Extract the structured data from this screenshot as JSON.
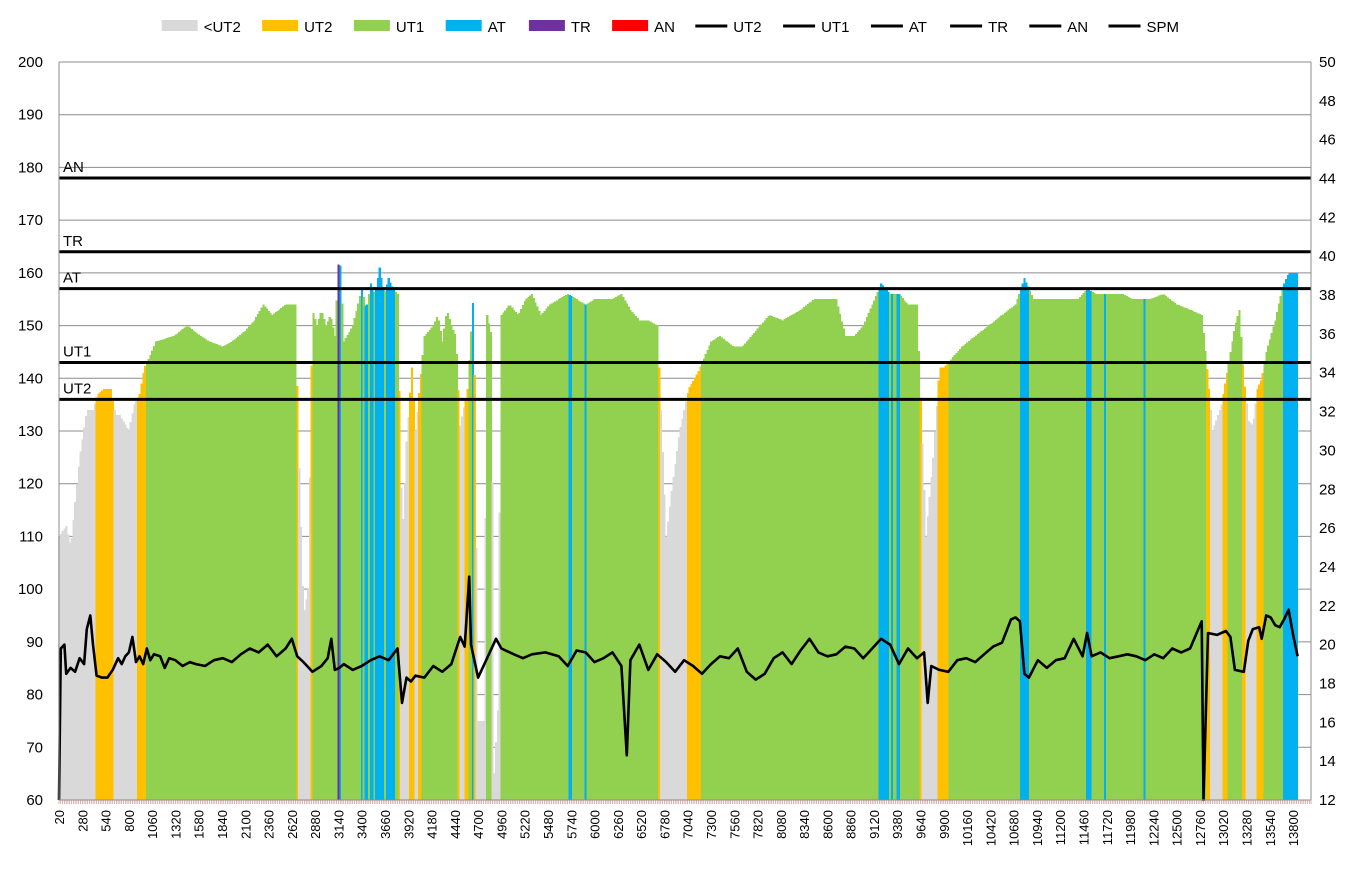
{
  "chart_data": {
    "type": "bar",
    "legend": {
      "placement": "top",
      "entries": [
        {
          "label": "<UT2",
          "kind": "swatch",
          "color": "#d9d9d9"
        },
        {
          "label": "UT2",
          "kind": "swatch",
          "color": "#ffc000"
        },
        {
          "label": "UT1",
          "kind": "swatch",
          "color": "#92d050"
        },
        {
          "label": "AT",
          "kind": "swatch",
          "color": "#00b0f0"
        },
        {
          "label": "TR",
          "kind": "swatch",
          "color": "#7030a0"
        },
        {
          "label": "AN",
          "kind": "swatch",
          "color": "#ff0000"
        },
        {
          "label": "UT2",
          "kind": "line",
          "color": "#000000"
        },
        {
          "label": "UT1",
          "kind": "line",
          "color": "#000000"
        },
        {
          "label": "AT",
          "kind": "line",
          "color": "#000000"
        },
        {
          "label": "TR",
          "kind": "line",
          "color": "#000000"
        },
        {
          "label": "AN",
          "kind": "line",
          "color": "#000000"
        },
        {
          "label": "SPM",
          "kind": "line",
          "color": "#000000"
        }
      ]
    },
    "y_left": {
      "min": 60,
      "max": 200,
      "step": 10
    },
    "y_right": {
      "min": 12,
      "max": 50,
      "step": 2
    },
    "x": {
      "min": 20,
      "max": 14000
    },
    "x_ticks": [
      "20",
      "280",
      "540",
      "800",
      "1060",
      "1320",
      "1580",
      "1840",
      "2100",
      "2360",
      "2620",
      "2880",
      "3140",
      "3400",
      "3660",
      "3920",
      "4180",
      "4440",
      "4700",
      "4960",
      "5220",
      "5480",
      "5740",
      "6000",
      "6260",
      "6520",
      "6780",
      "7040",
      "7300",
      "7560",
      "7820",
      "8080",
      "8340",
      "8600",
      "8860",
      "9120",
      "9380",
      "9640",
      "9900",
      "10160",
      "10420",
      "10680",
      "10940",
      "11200",
      "11460",
      "11720",
      "11980",
      "12240",
      "12500",
      "12760",
      "13020",
      "13280",
      "13540",
      "13800"
    ],
    "grid": "horizontal",
    "zone_lines": [
      {
        "label": "AN",
        "value": 178
      },
      {
        "label": "TR",
        "value": 164
      },
      {
        "label": "AT",
        "value": 157
      },
      {
        "label": "UT1",
        "value": 143
      },
      {
        "label": "UT2",
        "value": 136
      }
    ],
    "heart_rate_points": [
      [
        20,
        110
      ],
      [
        100,
        112
      ],
      [
        150,
        108
      ],
      [
        250,
        125
      ],
      [
        330,
        134
      ],
      [
        400,
        134
      ],
      [
        450,
        137
      ],
      [
        520,
        138
      ],
      [
        600,
        138
      ],
      [
        650,
        133
      ],
      [
        700,
        133
      ],
      [
        800,
        130
      ],
      [
        860,
        135
      ],
      [
        920,
        137
      ],
      [
        970,
        142
      ],
      [
        1030,
        144
      ],
      [
        1100,
        147
      ],
      [
        1300,
        148
      ],
      [
        1450,
        150
      ],
      [
        1600,
        148
      ],
      [
        1700,
        147
      ],
      [
        1850,
        146
      ],
      [
        1950,
        147
      ],
      [
        2100,
        149
      ],
      [
        2200,
        151
      ],
      [
        2300,
        154
      ],
      [
        2400,
        152
      ],
      [
        2550,
        154
      ],
      [
        2660,
        154
      ],
      [
        2700,
        123
      ],
      [
        2750,
        95
      ],
      [
        2800,
        100
      ],
      [
        2850,
        153
      ],
      [
        2900,
        150
      ],
      [
        2950,
        153
      ],
      [
        3000,
        150
      ],
      [
        3050,
        152
      ],
      [
        3100,
        148
      ],
      [
        3150,
        165
      ],
      [
        3200,
        147
      ],
      [
        3300,
        150
      ],
      [
        3400,
        157
      ],
      [
        3450,
        153
      ],
      [
        3500,
        158
      ],
      [
        3550,
        156
      ],
      [
        3600,
        161
      ],
      [
        3650,
        156
      ],
      [
        3700,
        159
      ],
      [
        3750,
        157
      ],
      [
        3800,
        156
      ],
      [
        3850,
        110
      ],
      [
        3880,
        120
      ],
      [
        3900,
        128
      ],
      [
        3930,
        135
      ],
      [
        3960,
        142
      ],
      [
        4000,
        130
      ],
      [
        4100,
        148
      ],
      [
        4200,
        150
      ],
      [
        4250,
        152
      ],
      [
        4300,
        147
      ],
      [
        4350,
        153
      ],
      [
        4400,
        150
      ],
      [
        4450,
        148
      ],
      [
        4500,
        131
      ],
      [
        4580,
        138
      ],
      [
        4650,
        157
      ],
      [
        4700,
        75
      ],
      [
        4760,
        75
      ],
      [
        4800,
        152
      ],
      [
        4850,
        148
      ],
      [
        4880,
        65
      ],
      [
        4920,
        77
      ],
      [
        4960,
        152
      ],
      [
        5050,
        154
      ],
      [
        5150,
        152
      ],
      [
        5230,
        155
      ],
      [
        5300,
        156
      ],
      [
        5400,
        152
      ],
      [
        5500,
        154
      ],
      [
        5600,
        155
      ],
      [
        5700,
        156
      ],
      [
        5800,
        155
      ],
      [
        5900,
        154
      ],
      [
        6000,
        155
      ],
      [
        6100,
        155
      ],
      [
        6200,
        155
      ],
      [
        6300,
        156
      ],
      [
        6400,
        153
      ],
      [
        6500,
        151
      ],
      [
        6600,
        151
      ],
      [
        6700,
        150
      ],
      [
        6800,
        110
      ],
      [
        6870,
        120
      ],
      [
        6950,
        130
      ],
      [
        7050,
        138
      ],
      [
        7150,
        141
      ],
      [
        7200,
        143
      ],
      [
        7300,
        147
      ],
      [
        7400,
        148
      ],
      [
        7550,
        146
      ],
      [
        7650,
        146
      ],
      [
        7800,
        149
      ],
      [
        7950,
        152
      ],
      [
        8100,
        151
      ],
      [
        8200,
        152
      ],
      [
        8300,
        153
      ],
      [
        8450,
        155
      ],
      [
        8600,
        155
      ],
      [
        8700,
        155
      ],
      [
        8800,
        148
      ],
      [
        8900,
        148
      ],
      [
        9000,
        150
      ],
      [
        9100,
        154
      ],
      [
        9200,
        158
      ],
      [
        9300,
        156
      ],
      [
        9400,
        156
      ],
      [
        9500,
        154
      ],
      [
        9600,
        154
      ],
      [
        9700,
        110
      ],
      [
        9780,
        125
      ],
      [
        9850,
        142
      ],
      [
        9900,
        142
      ],
      [
        10000,
        144
      ],
      [
        10100,
        146
      ],
      [
        10250,
        148
      ],
      [
        10400,
        150
      ],
      [
        10550,
        152
      ],
      [
        10700,
        154
      ],
      [
        10800,
        159
      ],
      [
        10900,
        155
      ],
      [
        11000,
        155
      ],
      [
        11100,
        155
      ],
      [
        11200,
        155
      ],
      [
        11300,
        155
      ],
      [
        11400,
        155
      ],
      [
        11500,
        157
      ],
      [
        11600,
        156
      ],
      [
        11700,
        156
      ],
      [
        11800,
        156
      ],
      [
        11900,
        156
      ],
      [
        12000,
        155
      ],
      [
        12100,
        155
      ],
      [
        12200,
        155
      ],
      [
        12350,
        156
      ],
      [
        12500,
        154
      ],
      [
        12650,
        153
      ],
      [
        12780,
        152
      ],
      [
        12850,
        140
      ],
      [
        12900,
        130
      ],
      [
        13000,
        135
      ],
      [
        13050,
        140
      ],
      [
        13100,
        145
      ],
      [
        13150,
        150
      ],
      [
        13200,
        153
      ],
      [
        13250,
        140
      ],
      [
        13300,
        132
      ],
      [
        13350,
        131
      ],
      [
        13400,
        138
      ],
      [
        13450,
        140
      ],
      [
        13500,
        145
      ],
      [
        13550,
        148
      ],
      [
        13600,
        151
      ],
      [
        13650,
        155
      ],
      [
        13700,
        158
      ],
      [
        13750,
        160
      ],
      [
        13800,
        160
      ]
    ],
    "zone_override_points": [
      [
        3135,
        "TR"
      ],
      [
        3450,
        "AT"
      ],
      [
        3605,
        "AT"
      ],
      [
        3700,
        "AT"
      ],
      [
        3760,
        "AT"
      ],
      [
        4640,
        "AT"
      ],
      [
        5730,
        "AT"
      ],
      [
        5900,
        "AT"
      ],
      [
        9210,
        "AT"
      ],
      [
        9230,
        "AT"
      ],
      [
        9250,
        "AT"
      ],
      [
        9270,
        "AT"
      ],
      [
        9320,
        "AT"
      ],
      [
        9390,
        "AT"
      ],
      [
        10775,
        "AT"
      ],
      [
        11500,
        "AT"
      ],
      [
        11515,
        "AT"
      ],
      [
        11535,
        "AT"
      ],
      [
        11700,
        "AT"
      ],
      [
        12140,
        "AT"
      ],
      [
        13720,
        "AT"
      ],
      [
        13740,
        "AT"
      ],
      [
        13760,
        "AT"
      ],
      [
        13780,
        "AT"
      ],
      [
        13800,
        "AT"
      ],
      [
        13820,
        "AT"
      ]
    ],
    "spm_points": [
      [
        20,
        12
      ],
      [
        40,
        19.8
      ],
      [
        80,
        20
      ],
      [
        100,
        18.5
      ],
      [
        150,
        18.8
      ],
      [
        200,
        18.6
      ],
      [
        250,
        19.3
      ],
      [
        300,
        19
      ],
      [
        330,
        20.8
      ],
      [
        370,
        21.5
      ],
      [
        400,
        20
      ],
      [
        440,
        18.4
      ],
      [
        500,
        18.3
      ],
      [
        560,
        18.3
      ],
      [
        620,
        18.7
      ],
      [
        680,
        19.3
      ],
      [
        720,
        19
      ],
      [
        760,
        19.4
      ],
      [
        800,
        19.6
      ],
      [
        840,
        20.4
      ],
      [
        880,
        19.1
      ],
      [
        920,
        19.4
      ],
      [
        960,
        19
      ],
      [
        1000,
        19.8
      ],
      [
        1040,
        19.2
      ],
      [
        1080,
        19.5
      ],
      [
        1150,
        19.4
      ],
      [
        1200,
        18.8
      ],
      [
        1250,
        19.3
      ],
      [
        1320,
        19.2
      ],
      [
        1400,
        18.9
      ],
      [
        1480,
        19.1
      ],
      [
        1550,
        19
      ],
      [
        1650,
        18.9
      ],
      [
        1750,
        19.2
      ],
      [
        1850,
        19.3
      ],
      [
        1950,
        19.1
      ],
      [
        2050,
        19.5
      ],
      [
        2150,
        19.8
      ],
      [
        2250,
        19.6
      ],
      [
        2350,
        20
      ],
      [
        2450,
        19.4
      ],
      [
        2550,
        19.8
      ],
      [
        2620,
        20.3
      ],
      [
        2680,
        19.4
      ],
      [
        2750,
        19.1
      ],
      [
        2850,
        18.6
      ],
      [
        2950,
        18.9
      ],
      [
        3020,
        19.3
      ],
      [
        3060,
        20.3
      ],
      [
        3100,
        18.7
      ],
      [
        3150,
        18.8
      ],
      [
        3200,
        19
      ],
      [
        3300,
        18.7
      ],
      [
        3400,
        18.9
      ],
      [
        3500,
        19.2
      ],
      [
        3600,
        19.4
      ],
      [
        3700,
        19.2
      ],
      [
        3800,
        19.8
      ],
      [
        3850,
        17
      ],
      [
        3900,
        18.3
      ],
      [
        3950,
        18.1
      ],
      [
        4000,
        18.4
      ],
      [
        4100,
        18.3
      ],
      [
        4200,
        18.9
      ],
      [
        4300,
        18.6
      ],
      [
        4400,
        19
      ],
      [
        4500,
        20.4
      ],
      [
        4550,
        19.9
      ],
      [
        4600,
        23.5
      ],
      [
        4620,
        20
      ],
      [
        4700,
        18.3
      ],
      [
        4800,
        19.3
      ],
      [
        4900,
        20.3
      ],
      [
        4960,
        19.8
      ],
      [
        5100,
        19.5
      ],
      [
        5200,
        19.3
      ],
      [
        5300,
        19.5
      ],
      [
        5450,
        19.6
      ],
      [
        5600,
        19.4
      ],
      [
        5700,
        18.9
      ],
      [
        5800,
        19.7
      ],
      [
        5900,
        19.6
      ],
      [
        6000,
        19.1
      ],
      [
        6100,
        19.3
      ],
      [
        6200,
        19.6
      ],
      [
        6300,
        18.9
      ],
      [
        6360,
        14.3
      ],
      [
        6400,
        19.2
      ],
      [
        6500,
        20
      ],
      [
        6600,
        18.7
      ],
      [
        6700,
        19.5
      ],
      [
        6800,
        19.1
      ],
      [
        6900,
        18.6
      ],
      [
        7000,
        19.2
      ],
      [
        7100,
        18.9
      ],
      [
        7200,
        18.5
      ],
      [
        7300,
        19
      ],
      [
        7400,
        19.4
      ],
      [
        7500,
        19.3
      ],
      [
        7600,
        19.8
      ],
      [
        7700,
        18.6
      ],
      [
        7800,
        18.2
      ],
      [
        7900,
        18.5
      ],
      [
        8000,
        19.3
      ],
      [
        8100,
        19.6
      ],
      [
        8200,
        19
      ],
      [
        8300,
        19.7
      ],
      [
        8400,
        20.3
      ],
      [
        8500,
        19.6
      ],
      [
        8600,
        19.4
      ],
      [
        8700,
        19.5
      ],
      [
        8800,
        19.9
      ],
      [
        8900,
        19.8
      ],
      [
        9000,
        19.3
      ],
      [
        9100,
        19.8
      ],
      [
        9200,
        20.3
      ],
      [
        9300,
        20
      ],
      [
        9400,
        19
      ],
      [
        9500,
        19.8
      ],
      [
        9600,
        19.3
      ],
      [
        9680,
        19.6
      ],
      [
        9720,
        17
      ],
      [
        9760,
        18.9
      ],
      [
        9850,
        18.7
      ],
      [
        9950,
        18.6
      ],
      [
        10050,
        19.2
      ],
      [
        10150,
        19.3
      ],
      [
        10250,
        19.1
      ],
      [
        10350,
        19.5
      ],
      [
        10450,
        19.9
      ],
      [
        10550,
        20.1
      ],
      [
        10650,
        21.3
      ],
      [
        10700,
        21.4
      ],
      [
        10750,
        21.2
      ],
      [
        10800,
        18.5
      ],
      [
        10850,
        18.3
      ],
      [
        10950,
        19.2
      ],
      [
        11050,
        18.8
      ],
      [
        11150,
        19.2
      ],
      [
        11250,
        19.3
      ],
      [
        11350,
        20.3
      ],
      [
        11450,
        19.4
      ],
      [
        11500,
        20.6
      ],
      [
        11550,
        19.4
      ],
      [
        11650,
        19.6
      ],
      [
        11750,
        19.3
      ],
      [
        11850,
        19.4
      ],
      [
        11950,
        19.5
      ],
      [
        12050,
        19.4
      ],
      [
        12150,
        19.2
      ],
      [
        12250,
        19.5
      ],
      [
        12350,
        19.3
      ],
      [
        12450,
        19.8
      ],
      [
        12550,
        19.6
      ],
      [
        12650,
        19.8
      ],
      [
        12780,
        21.2
      ],
      [
        12800,
        12
      ],
      [
        12850,
        20.6
      ],
      [
        12950,
        20.5
      ],
      [
        13050,
        20.7
      ],
      [
        13100,
        20.4
      ],
      [
        13150,
        18.7
      ],
      [
        13250,
        18.6
      ],
      [
        13300,
        20.2
      ],
      [
        13350,
        20.8
      ],
      [
        13420,
        20.9
      ],
      [
        13450,
        20.3
      ],
      [
        13500,
        21.5
      ],
      [
        13550,
        21.4
      ],
      [
        13600,
        21
      ],
      [
        13650,
        20.9
      ],
      [
        13700,
        21.3
      ],
      [
        13750,
        21.8
      ],
      [
        13800,
        20.5
      ],
      [
        13850,
        19.4
      ]
    ]
  }
}
